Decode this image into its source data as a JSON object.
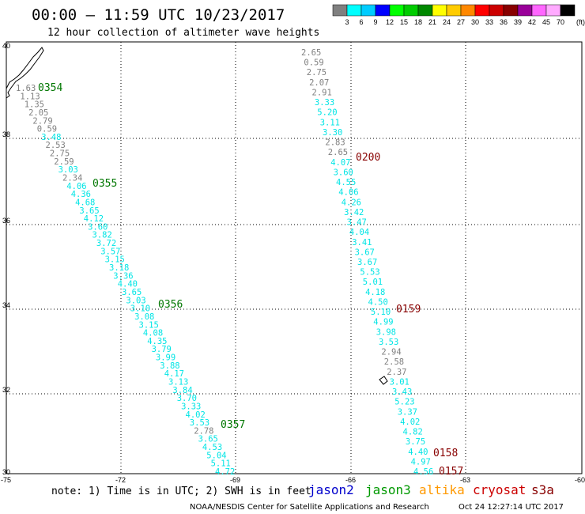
{
  "header": {
    "title": "00:00 – 11:59 UTC 10/23/2017",
    "subtitle": "12 hour collection of altimeter wave heights"
  },
  "color_scale": {
    "labels": [
      "3",
      "6",
      "9",
      "12",
      "15",
      "18",
      "21",
      "24",
      "27",
      "30",
      "33",
      "36",
      "39",
      "42",
      "45",
      "70"
    ],
    "unit": "(ft)",
    "colors": [
      "#808080",
      "#00ffff",
      "#00ccff",
      "#0000ff",
      "#00ff00",
      "#00cc00",
      "#008800",
      "#ffff00",
      "#ffcc00",
      "#ff8800",
      "#ff0000",
      "#cc0000",
      "#880000",
      "#990099",
      "#ff66ff",
      "#ffaaff",
      "#000000"
    ]
  },
  "axes": {
    "lon_labels": [
      "-75",
      "-72",
      "-69",
      "-66",
      "-63",
      "-60"
    ],
    "lat_labels": [
      "40",
      "38",
      "36",
      "34",
      "32",
      "30"
    ]
  },
  "tracks": {
    "west": [
      {
        "v": "1.63",
        "c": "#808080"
      },
      {
        "v": "1.13",
        "c": "#808080"
      },
      {
        "v": "1.35",
        "c": "#808080"
      },
      {
        "v": "2.05",
        "c": "#808080"
      },
      {
        "v": "2.79",
        "c": "#808080"
      },
      {
        "v": "0.59",
        "c": "#808080"
      },
      {
        "v": "3.48",
        "c": "#00e5e5"
      },
      {
        "v": "2.53",
        "c": "#808080"
      },
      {
        "v": "2.75",
        "c": "#808080"
      },
      {
        "v": "2.59",
        "c": "#808080"
      },
      {
        "v": "3.03",
        "c": "#00e5e5"
      },
      {
        "v": "2.34",
        "c": "#808080"
      },
      {
        "v": "4.06",
        "c": "#00e5e5"
      },
      {
        "v": "4.36",
        "c": "#00e5e5"
      },
      {
        "v": "4.68",
        "c": "#00e5e5"
      },
      {
        "v": "3.65",
        "c": "#00e5e5"
      },
      {
        "v": "4.12",
        "c": "#00e5e5"
      },
      {
        "v": "3.60",
        "c": "#00e5e5"
      },
      {
        "v": "3.82",
        "c": "#00e5e5"
      },
      {
        "v": "3.72",
        "c": "#00e5e5"
      },
      {
        "v": "3.57",
        "c": "#00e5e5"
      },
      {
        "v": "3.15",
        "c": "#00e5e5"
      },
      {
        "v": "3.18",
        "c": "#00e5e5"
      },
      {
        "v": "3.36",
        "c": "#00e5e5"
      },
      {
        "v": "4.40",
        "c": "#00e5e5"
      },
      {
        "v": "3.65",
        "c": "#00e5e5"
      },
      {
        "v": "3.03",
        "c": "#00e5e5"
      },
      {
        "v": "3.10",
        "c": "#00e5e5"
      },
      {
        "v": "3.08",
        "c": "#00e5e5"
      },
      {
        "v": "3.15",
        "c": "#00e5e5"
      },
      {
        "v": "4.08",
        "c": "#00e5e5"
      },
      {
        "v": "4.35",
        "c": "#00e5e5"
      },
      {
        "v": "3.79",
        "c": "#00e5e5"
      },
      {
        "v": "3.99",
        "c": "#00e5e5"
      },
      {
        "v": "3.88",
        "c": "#00e5e5"
      },
      {
        "v": "4.17",
        "c": "#00e5e5"
      },
      {
        "v": "3.13",
        "c": "#00e5e5"
      },
      {
        "v": "3.84",
        "c": "#00e5e5"
      },
      {
        "v": "3.70",
        "c": "#00e5e5"
      },
      {
        "v": "3.33",
        "c": "#00e5e5"
      },
      {
        "v": "4.02",
        "c": "#00e5e5"
      },
      {
        "v": "3.53",
        "c": "#00e5e5"
      },
      {
        "v": "2.78",
        "c": "#808080"
      },
      {
        "v": "3.65",
        "c": "#00e5e5"
      },
      {
        "v": "4.53",
        "c": "#00e5e5"
      },
      {
        "v": "5.04",
        "c": "#00e5e5"
      },
      {
        "v": "5.11",
        "c": "#00e5e5"
      },
      {
        "v": "4.72",
        "c": "#00e5e5"
      }
    ],
    "east": [
      {
        "v": "2.65",
        "c": "#808080"
      },
      {
        "v": "0.59",
        "c": "#808080"
      },
      {
        "v": "2.75",
        "c": "#808080"
      },
      {
        "v": "2.07",
        "c": "#808080"
      },
      {
        "v": "2.91",
        "c": "#808080"
      },
      {
        "v": "3.33",
        "c": "#00e5e5"
      },
      {
        "v": "5.20",
        "c": "#00e5e5"
      },
      {
        "v": "3.11",
        "c": "#00e5e5"
      },
      {
        "v": "3.30",
        "c": "#00e5e5"
      },
      {
        "v": "2.83",
        "c": "#808080"
      },
      {
        "v": "2.65",
        "c": "#808080"
      },
      {
        "v": "4.07",
        "c": "#00e5e5"
      },
      {
        "v": "3.60",
        "c": "#00e5e5"
      },
      {
        "v": "4.55",
        "c": "#00e5e5"
      },
      {
        "v": "4.06",
        "c": "#00e5e5"
      },
      {
        "v": "4.26",
        "c": "#00e5e5"
      },
      {
        "v": "3.42",
        "c": "#00e5e5"
      },
      {
        "v": "3.47",
        "c": "#00e5e5"
      },
      {
        "v": "4.04",
        "c": "#00e5e5"
      },
      {
        "v": "3.41",
        "c": "#00e5e5"
      },
      {
        "v": "3.67",
        "c": "#00e5e5"
      },
      {
        "v": "3.67",
        "c": "#00e5e5"
      },
      {
        "v": "5.53",
        "c": "#00e5e5"
      },
      {
        "v": "5.01",
        "c": "#00e5e5"
      },
      {
        "v": "4.18",
        "c": "#00e5e5"
      },
      {
        "v": "4.50",
        "c": "#00e5e5"
      },
      {
        "v": "5.10",
        "c": "#00e5e5"
      },
      {
        "v": "4.99",
        "c": "#00e5e5"
      },
      {
        "v": "3.98",
        "c": "#00e5e5"
      },
      {
        "v": "3.53",
        "c": "#00e5e5"
      },
      {
        "v": "2.94",
        "c": "#808080"
      },
      {
        "v": "2.58",
        "c": "#808080"
      },
      {
        "v": "2.37",
        "c": "#808080"
      },
      {
        "v": "3.01",
        "c": "#00e5e5"
      },
      {
        "v": "3.43",
        "c": "#00e5e5"
      },
      {
        "v": "5.23",
        "c": "#00e5e5"
      },
      {
        "v": "3.37",
        "c": "#00e5e5"
      },
      {
        "v": "4.02",
        "c": "#00e5e5"
      },
      {
        "v": "4.82",
        "c": "#00e5e5"
      },
      {
        "v": "3.75",
        "c": "#00e5e5"
      },
      {
        "v": "4.40",
        "c": "#00e5e5"
      },
      {
        "v": "4.97",
        "c": "#00e5e5"
      },
      {
        "v": "4.56",
        "c": "#00e5e5"
      }
    ]
  },
  "pass_times": {
    "west": [
      {
        "t": "0354",
        "c": "#007700"
      },
      {
        "t": "0355",
        "c": "#007700"
      },
      {
        "t": "0356",
        "c": "#007700"
      },
      {
        "t": "0357",
        "c": "#007700"
      }
    ],
    "east": [
      {
        "t": "0200",
        "c": "#880000"
      },
      {
        "t": "0159",
        "c": "#880000"
      },
      {
        "t": "0158",
        "c": "#880000"
      },
      {
        "t": "0157",
        "c": "#880000"
      }
    ]
  },
  "note": "note: 1) Time is in UTC; 2) SWH is in feet",
  "satellites": [
    {
      "name": "jason2",
      "color": "#0000cc"
    },
    {
      "name": "jason3",
      "color": "#009900"
    },
    {
      "name": "altika",
      "color": "#ff9900"
    },
    {
      "name": "cryosat",
      "color": "#cc0000"
    },
    {
      "name": "s3a",
      "color": "#880000"
    }
  ],
  "footer": {
    "source": "NOAA/NESDIS Center for Satellite Applications and Research",
    "timestamp": "Oct 24 12:27:14 UTC 2017"
  }
}
